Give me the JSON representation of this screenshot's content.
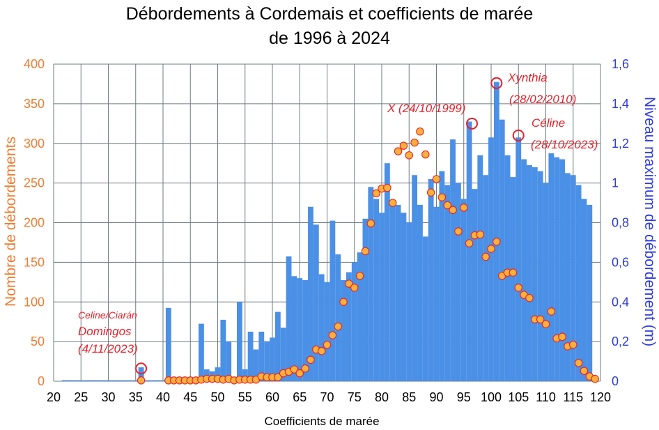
{
  "chart_data": {
    "type": "bar+scatter",
    "title_line1": "Débordements à Cordemais et coefficients de marée",
    "title_line2": "de 1996 à 2024",
    "xlabel": "Coefficients de marée",
    "ylabel_left": "Nombre de débordements",
    "ylabel_right": "Niveau maximum de débordement (m)",
    "xlim": [
      20,
      120
    ],
    "ylim_left": [
      0,
      400
    ],
    "ylim_right": [
      0,
      1.6
    ],
    "x_ticks": [
      "20",
      "25",
      "30",
      "35",
      "40",
      "45",
      "50",
      "55",
      "60",
      "65",
      "70",
      "75",
      "80",
      "85",
      "90",
      "95",
      "100",
      "105",
      "110",
      "115",
      "120"
    ],
    "y_left_ticks": [
      "0",
      "50",
      "100",
      "150",
      "200",
      "250",
      "300",
      "350",
      "400"
    ],
    "y_right_ticks": [
      "0",
      "0,2",
      "0,4",
      "0,6",
      "0,8",
      "1",
      "1,2",
      "1,4",
      "1,6"
    ],
    "grid": true,
    "colors": {
      "bars": "#4A90E6",
      "markers_fill": "#FBB03B",
      "markers_edge": "#E8202A",
      "left_axis": "#ED7D31",
      "right_axis": "#2E3BE0",
      "annotation": "#E8202A"
    },
    "bars_max_level_m": [
      {
        "x": 22,
        "y": 0.005
      },
      {
        "x": 23,
        "y": 0.005
      },
      {
        "x": 24,
        "y": 0.005
      },
      {
        "x": 25,
        "y": 0.005
      },
      {
        "x": 26,
        "y": 0.005
      },
      {
        "x": 27,
        "y": 0.005
      },
      {
        "x": 28,
        "y": 0.005
      },
      {
        "x": 29,
        "y": 0.005
      },
      {
        "x": 30,
        "y": 0.005
      },
      {
        "x": 31,
        "y": 0.005
      },
      {
        "x": 32,
        "y": 0.005
      },
      {
        "x": 33,
        "y": 0.005
      },
      {
        "x": 34,
        "y": 0.005
      },
      {
        "x": 35,
        "y": 0.005
      },
      {
        "x": 36,
        "y": 0.07
      },
      {
        "x": 37,
        "y": 0.005
      },
      {
        "x": 38,
        "y": 0.005
      },
      {
        "x": 39,
        "y": 0.005
      },
      {
        "x": 40,
        "y": 0.005
      },
      {
        "x": 41,
        "y": 0.37
      },
      {
        "x": 42,
        "y": 0.005
      },
      {
        "x": 43,
        "y": 0.005
      },
      {
        "x": 44,
        "y": 0.005
      },
      {
        "x": 45,
        "y": 0.005
      },
      {
        "x": 46,
        "y": 0.005
      },
      {
        "x": 47,
        "y": 0.29
      },
      {
        "x": 48,
        "y": 0.06
      },
      {
        "x": 49,
        "y": 0.05
      },
      {
        "x": 50,
        "y": 0.07
      },
      {
        "x": 51,
        "y": 0.31
      },
      {
        "x": 52,
        "y": 0.2
      },
      {
        "x": 53,
        "y": 0.005
      },
      {
        "x": 54,
        "y": 0.4
      },
      {
        "x": 55,
        "y": 0.06
      },
      {
        "x": 56,
        "y": 0.25
      },
      {
        "x": 57,
        "y": 0.16
      },
      {
        "x": 58,
        "y": 0.25
      },
      {
        "x": 59,
        "y": 0.2
      },
      {
        "x": 60,
        "y": 0.22
      },
      {
        "x": 61,
        "y": 0.35
      },
      {
        "x": 62,
        "y": 0.27
      },
      {
        "x": 63,
        "y": 0.63
      },
      {
        "x": 64,
        "y": 0.53
      },
      {
        "x": 65,
        "y": 0.52
      },
      {
        "x": 66,
        "y": 0.51
      },
      {
        "x": 67,
        "y": 0.88
      },
      {
        "x": 68,
        "y": 0.79
      },
      {
        "x": 69,
        "y": 0.54
      },
      {
        "x": 70,
        "y": 0.5
      },
      {
        "x": 71,
        "y": 0.81
      },
      {
        "x": 72,
        "y": 0.64
      },
      {
        "x": 73,
        "y": 0.51
      },
      {
        "x": 74,
        "y": 0.55
      },
      {
        "x": 75,
        "y": 0.6
      },
      {
        "x": 76,
        "y": 0.65
      },
      {
        "x": 77,
        "y": 0.82
      },
      {
        "x": 78,
        "y": 0.98
      },
      {
        "x": 79,
        "y": 0.92
      },
      {
        "x": 80,
        "y": 0.85
      },
      {
        "x": 81,
        "y": 1.1
      },
      {
        "x": 82,
        "y": 0.9
      },
      {
        "x": 83,
        "y": 0.89
      },
      {
        "x": 84,
        "y": 0.85
      },
      {
        "x": 85,
        "y": 0.8
      },
      {
        "x": 86,
        "y": 1.04
      },
      {
        "x": 87,
        "y": 0.89
      },
      {
        "x": 88,
        "y": 0.73
      },
      {
        "x": 89,
        "y": 1.02
      },
      {
        "x": 90,
        "y": 0.88
      },
      {
        "x": 91,
        "y": 1.06
      },
      {
        "x": 92,
        "y": 0.99
      },
      {
        "x": 93,
        "y": 1.22
      },
      {
        "x": 94,
        "y": 1.0
      },
      {
        "x": 95,
        "y": 0.92
      },
      {
        "x": 96,
        "y": 1.31
      },
      {
        "x": 97,
        "y": 0.97
      },
      {
        "x": 98,
        "y": 1.14
      },
      {
        "x": 99,
        "y": 1.04
      },
      {
        "x": 100,
        "y": 1.23
      },
      {
        "x": 101,
        "y": 1.51
      },
      {
        "x": 102,
        "y": 1.32
      },
      {
        "x": 103,
        "y": 1.14
      },
      {
        "x": 104,
        "y": 1.03
      },
      {
        "x": 105,
        "y": 1.23
      },
      {
        "x": 106,
        "y": 1.12
      },
      {
        "x": 107,
        "y": 1.09
      },
      {
        "x": 108,
        "y": 1.08
      },
      {
        "x": 109,
        "y": 1.06
      },
      {
        "x": 110,
        "y": 1.0
      },
      {
        "x": 111,
        "y": 1.15
      },
      {
        "x": 112,
        "y": 1.13
      },
      {
        "x": 113,
        "y": 1.12
      },
      {
        "x": 114,
        "y": 1.05
      },
      {
        "x": 115,
        "y": 1.04
      },
      {
        "x": 116,
        "y": 0.99
      },
      {
        "x": 117,
        "y": 0.92
      },
      {
        "x": 118,
        "y": 0.89
      }
    ],
    "points_count": [
      {
        "x": 36,
        "y": 1
      },
      {
        "x": 41,
        "y": 1
      },
      {
        "x": 42,
        "y": 1
      },
      {
        "x": 43,
        "y": 1
      },
      {
        "x": 44,
        "y": 1
      },
      {
        "x": 45,
        "y": 1
      },
      {
        "x": 46,
        "y": 1
      },
      {
        "x": 47,
        "y": 2
      },
      {
        "x": 48,
        "y": 3
      },
      {
        "x": 49,
        "y": 3
      },
      {
        "x": 50,
        "y": 3
      },
      {
        "x": 51,
        "y": 2
      },
      {
        "x": 52,
        "y": 3
      },
      {
        "x": 53,
        "y": 1
      },
      {
        "x": 54,
        "y": 2
      },
      {
        "x": 55,
        "y": 2
      },
      {
        "x": 56,
        "y": 2
      },
      {
        "x": 57,
        "y": 2
      },
      {
        "x": 58,
        "y": 6
      },
      {
        "x": 59,
        "y": 5
      },
      {
        "x": 60,
        "y": 5
      },
      {
        "x": 61,
        "y": 5
      },
      {
        "x": 62,
        "y": 10
      },
      {
        "x": 63,
        "y": 12
      },
      {
        "x": 64,
        "y": 15
      },
      {
        "x": 65,
        "y": 10
      },
      {
        "x": 66,
        "y": 16
      },
      {
        "x": 67,
        "y": 27
      },
      {
        "x": 68,
        "y": 40
      },
      {
        "x": 69,
        "y": 38
      },
      {
        "x": 70,
        "y": 46
      },
      {
        "x": 71,
        "y": 58
      },
      {
        "x": 72,
        "y": 69
      },
      {
        "x": 73,
        "y": 100
      },
      {
        "x": 74,
        "y": 123
      },
      {
        "x": 75,
        "y": 118
      },
      {
        "x": 76,
        "y": 133
      },
      {
        "x": 77,
        "y": 164
      },
      {
        "x": 78,
        "y": 199
      },
      {
        "x": 79,
        "y": 237
      },
      {
        "x": 80,
        "y": 243
      },
      {
        "x": 81,
        "y": 244
      },
      {
        "x": 82,
        "y": 225
      },
      {
        "x": 83,
        "y": 290
      },
      {
        "x": 84,
        "y": 297
      },
      {
        "x": 85,
        "y": 285
      },
      {
        "x": 86,
        "y": 301
      },
      {
        "x": 87,
        "y": 315
      },
      {
        "x": 88,
        "y": 286
      },
      {
        "x": 89,
        "y": 238
      },
      {
        "x": 90,
        "y": 255
      },
      {
        "x": 91,
        "y": 232
      },
      {
        "x": 92,
        "y": 222
      },
      {
        "x": 93,
        "y": 216
      },
      {
        "x": 94,
        "y": 189
      },
      {
        "x": 95,
        "y": 219
      },
      {
        "x": 96,
        "y": 174
      },
      {
        "x": 97,
        "y": 184
      },
      {
        "x": 98,
        "y": 185
      },
      {
        "x": 99,
        "y": 157
      },
      {
        "x": 100,
        "y": 167
      },
      {
        "x": 101,
        "y": 176
      },
      {
        "x": 102,
        "y": 133
      },
      {
        "x": 103,
        "y": 137
      },
      {
        "x": 104,
        "y": 137
      },
      {
        "x": 105,
        "y": 118
      },
      {
        "x": 106,
        "y": 109
      },
      {
        "x": 107,
        "y": 105
      },
      {
        "x": 108,
        "y": 78
      },
      {
        "x": 109,
        "y": 78
      },
      {
        "x": 110,
        "y": 72
      },
      {
        "x": 111,
        "y": 88
      },
      {
        "x": 112,
        "y": 54
      },
      {
        "x": 113,
        "y": 56
      },
      {
        "x": 114,
        "y": 44
      },
      {
        "x": 115,
        "y": 46
      },
      {
        "x": 116,
        "y": 23
      },
      {
        "x": 117,
        "y": 13
      },
      {
        "x": 118,
        "y": 6
      },
      {
        "x": 119,
        "y": 3
      }
    ],
    "highlighted_points": [
      {
        "x": 36,
        "y": 16
      },
      {
        "x": 96.5,
        "y": 325
      },
      {
        "x": 101,
        "y": 376
      },
      {
        "x": 105,
        "y": 310
      }
    ],
    "annotations": {
      "celine_ciaran": "Celine/Ciarán",
      "domingos": "Domingos",
      "domingos_date": "(4/11/2023)",
      "x_storm": "X (24/10/1999)",
      "xynthia": "Xynthia",
      "xynthia_date": "(28/02/2010)",
      "celine": "Céline",
      "celine_date": "(28/10/2023)"
    }
  }
}
